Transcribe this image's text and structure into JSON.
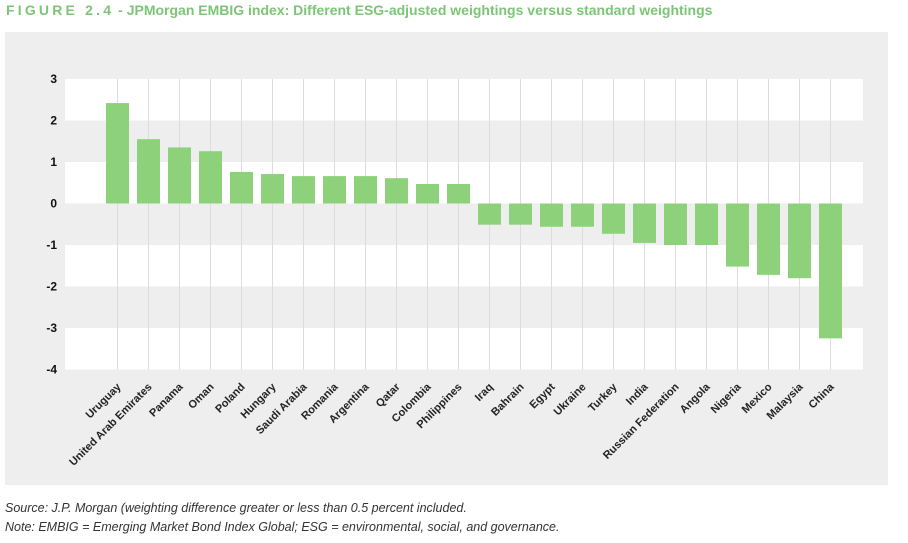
{
  "header": {
    "figure_label": "FIGURE 2.4",
    "title": " - JPMorgan EMBIG index: Different ESG-adjusted weightings versus standard weightings"
  },
  "footer": {
    "source": "Source: J.P. Morgan (weighting difference greater or less than 0.5 percent included.",
    "note": "Note: EMBIG = Emerging Market Bond Index Global; ESG = environmental, social, and governance."
  },
  "colors": {
    "bar": "#8ed17b",
    "title": "#7cc576",
    "panel_background": "#eeeeee",
    "band": "#ffffff"
  },
  "chart_data": {
    "type": "bar",
    "categories": [
      "Uruguay",
      "United Arab Emirates",
      "Panama",
      "Oman",
      "Poland",
      "Hungary",
      "Saudi Arabia",
      "Romania",
      "Argentina",
      "Qatar",
      "Colombia",
      "Philippines",
      "Iraq",
      "Bahrain",
      "Egypt",
      "Ukraine",
      "Turkey",
      "India",
      "Russian Federation",
      "Angola",
      "Nigeria",
      "Mexico",
      "Malaysia",
      "China"
    ],
    "values": [
      2.42,
      1.55,
      1.35,
      1.26,
      0.76,
      0.71,
      0.66,
      0.66,
      0.66,
      0.61,
      0.47,
      0.47,
      -0.51,
      -0.51,
      -0.56,
      -0.56,
      -0.73,
      -0.95,
      -1.0,
      -1.0,
      -1.52,
      -1.72,
      -1.8,
      -3.25
    ],
    "ylim": [
      -4,
      3
    ],
    "yticks": [
      3,
      2,
      1,
      0,
      -1,
      -2,
      -3,
      -4
    ],
    "grid": "alternating horizontal bands",
    "title": "",
    "xlabel": "",
    "ylabel": ""
  }
}
